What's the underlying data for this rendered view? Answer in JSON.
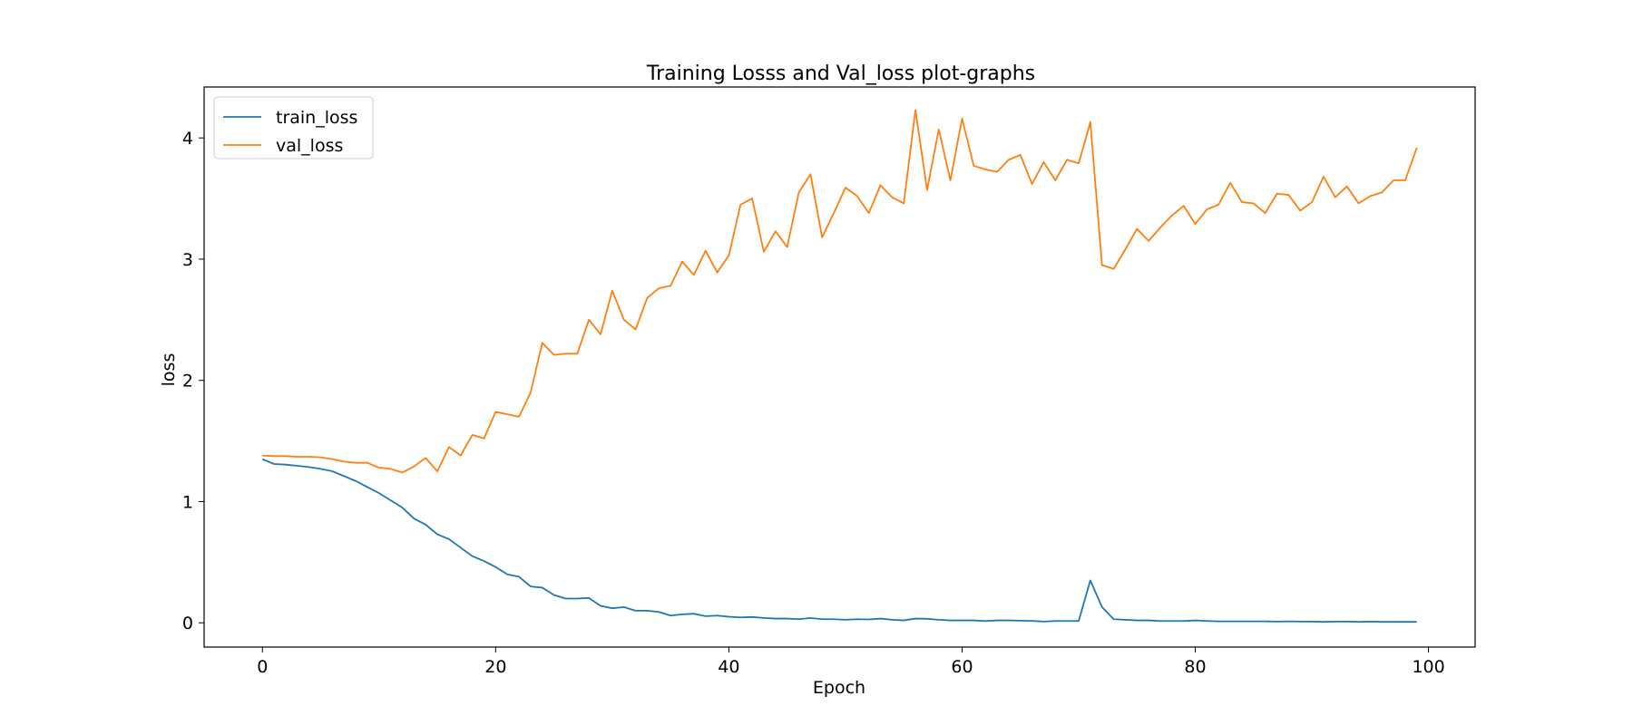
{
  "chart_data": {
    "type": "line",
    "title": "Training Losss and Val_loss plot-graphs",
    "xlabel": "Epoch",
    "ylabel": "loss",
    "xlim": [
      -5,
      104
    ],
    "ylim": [
      -0.2,
      4.42
    ],
    "xticks": [
      0,
      20,
      40,
      60,
      80,
      100
    ],
    "yticks": [
      0,
      1,
      2,
      3,
      4
    ],
    "grid": false,
    "legend_position": "upper-left",
    "series": [
      {
        "name": "train_loss",
        "color": "#1f77b4",
        "values": [
          1.35,
          1.31,
          1.305,
          1.295,
          1.285,
          1.27,
          1.25,
          1.21,
          1.17,
          1.12,
          1.07,
          1.01,
          0.95,
          0.86,
          0.81,
          0.73,
          0.69,
          0.62,
          0.55,
          0.51,
          0.46,
          0.4,
          0.38,
          0.3,
          0.29,
          0.23,
          0.2,
          0.2,
          0.205,
          0.14,
          0.12,
          0.13,
          0.1,
          0.1,
          0.09,
          0.06,
          0.07,
          0.075,
          0.055,
          0.06,
          0.05,
          0.045,
          0.048,
          0.04,
          0.035,
          0.035,
          0.03,
          0.04,
          0.03,
          0.03,
          0.025,
          0.03,
          0.028,
          0.035,
          0.025,
          0.02,
          0.035,
          0.033,
          0.025,
          0.02,
          0.02,
          0.02,
          0.015,
          0.02,
          0.02,
          0.018,
          0.016,
          0.01,
          0.015,
          0.015,
          0.015,
          0.35,
          0.13,
          0.03,
          0.025,
          0.02,
          0.02,
          0.015,
          0.015,
          0.015,
          0.02,
          0.015,
          0.012,
          0.012,
          0.012,
          0.012,
          0.012,
          0.01,
          0.012,
          0.01,
          0.01,
          0.008,
          0.01,
          0.01,
          0.008,
          0.01,
          0.008,
          0.008,
          0.008,
          0.008
        ]
      },
      {
        "name": "val_loss",
        "color": "#ff7f0e",
        "values": [
          1.38,
          1.375,
          1.375,
          1.37,
          1.37,
          1.365,
          1.35,
          1.33,
          1.32,
          1.32,
          1.28,
          1.27,
          1.24,
          1.29,
          1.36,
          1.25,
          1.45,
          1.38,
          1.55,
          1.52,
          1.74,
          1.72,
          1.7,
          1.9,
          2.31,
          2.21,
          2.22,
          2.22,
          2.5,
          2.38,
          2.74,
          2.5,
          2.42,
          2.68,
          2.76,
          2.78,
          2.98,
          2.87,
          3.07,
          2.89,
          3.03,
          3.45,
          3.5,
          3.06,
          3.23,
          3.1,
          3.55,
          3.7,
          3.18,
          3.38,
          3.59,
          3.52,
          3.38,
          3.61,
          3.51,
          3.46,
          4.23,
          3.57,
          4.07,
          3.65,
          4.16,
          3.77,
          3.74,
          3.72,
          3.82,
          3.86,
          3.62,
          3.8,
          3.65,
          3.82,
          3.79,
          4.13,
          2.95,
          2.92,
          3.08,
          3.25,
          3.15,
          3.26,
          3.36,
          3.44,
          3.29,
          3.41,
          3.45,
          3.63,
          3.47,
          3.46,
          3.38,
          3.54,
          3.53,
          3.4,
          3.47,
          3.68,
          3.51,
          3.6,
          3.46,
          3.52,
          3.55,
          3.65,
          3.65,
          3.92
        ]
      }
    ]
  }
}
